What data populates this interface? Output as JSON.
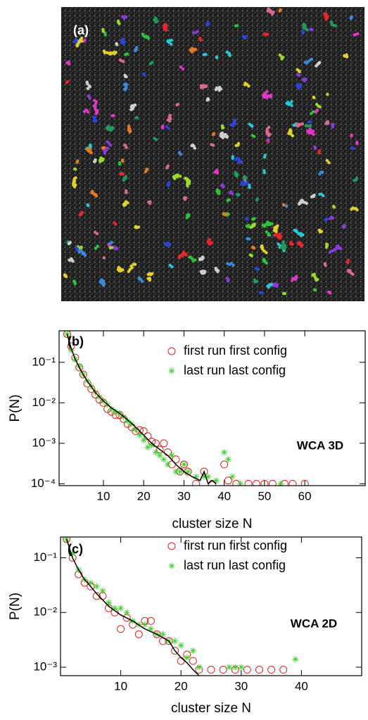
{
  "image_panel": {
    "label": "(a)"
  },
  "chart_data": [
    {
      "type": "scatter",
      "panel_label": "(b)",
      "annotation": "WCA 3D",
      "x_label": "cluster size N",
      "y_label": "P(N)",
      "log_y": true,
      "xlim": [
        -1,
        75
      ],
      "ylim": [
        9e-05,
        0.6
      ],
      "xticks": [
        10,
        20,
        30,
        40,
        50,
        60
      ],
      "yticks": [
        {
          "value": 0.1,
          "label": "10⁻¹"
        },
        {
          "value": 0.01,
          "label": "10⁻²"
        },
        {
          "value": 0.001,
          "label": "10⁻³"
        },
        {
          "value": 0.0001,
          "label": "10⁻⁴"
        }
      ],
      "series": [
        {
          "name": "first run first config",
          "color": "#e0241b",
          "marker": "circle",
          "x": [
            1,
            2,
            3,
            4,
            5,
            6,
            7,
            8,
            9,
            10,
            11,
            12,
            13,
            14,
            15,
            16,
            17,
            18,
            19,
            20,
            21,
            22,
            23,
            24,
            25,
            26,
            27,
            28,
            29,
            30,
            31,
            33,
            35,
            37,
            40,
            41,
            43,
            46,
            48,
            50,
            52,
            55,
            57,
            60
          ],
          "values": [
            0.5,
            0.25,
            0.13,
            0.075,
            0.05,
            0.03,
            0.022,
            0.016,
            0.012,
            0.01,
            0.007,
            0.006,
            0.005,
            0.005,
            0.004,
            0.003,
            0.0025,
            0.002,
            0.0021,
            0.002,
            0.0015,
            0.0011,
            0.001,
            0.0007,
            0.001,
            0.0006,
            0.0003,
            0.0004,
            0.0002,
            0.0003,
            0.0002,
            0.0001,
            0.0002,
            0.0001,
            0.0003,
            0.00012,
            0.0001,
            0.0001,
            0.0001,
            0.0001,
            0.0001,
            0.0001,
            0.0001,
            0.0001
          ]
        },
        {
          "name": "last run last config",
          "color": "#3fd22e",
          "marker": "star",
          "x": [
            1,
            2,
            3,
            4,
            5,
            6,
            7,
            8,
            9,
            10,
            11,
            12,
            13,
            14,
            15,
            16,
            17,
            18,
            19,
            20,
            21,
            22,
            23,
            24,
            25,
            26,
            27,
            28,
            29,
            30,
            31,
            33,
            35,
            36,
            38,
            40,
            41,
            42,
            44,
            54
          ],
          "values": [
            0.5,
            0.2,
            0.12,
            0.08,
            0.05,
            0.035,
            0.025,
            0.018,
            0.014,
            0.011,
            0.009,
            0.007,
            0.006,
            0.0055,
            0.0045,
            0.0035,
            0.003,
            0.0022,
            0.0016,
            0.0012,
            0.0008,
            0.0009,
            0.0006,
            0.0005,
            0.0004,
            0.0003,
            0.0005,
            0.0002,
            0.0002,
            0.0003,
            0.0002,
            0.00015,
            0.00015,
            0.00015,
            0.00012,
            0.0006,
            0.0004,
            0.00015,
            0.0001,
            0.0001
          ]
        },
        {
          "color": "#000000",
          "marker": "line",
          "x": [
            1,
            2,
            3,
            4,
            5,
            6,
            7,
            8,
            9,
            10,
            12,
            14,
            16,
            18,
            20,
            22,
            24,
            26,
            28,
            30,
            32,
            34,
            35,
            36,
            37,
            38
          ],
          "values": [
            0.5,
            0.22,
            0.12,
            0.075,
            0.05,
            0.034,
            0.025,
            0.018,
            0.014,
            0.011,
            0.0075,
            0.0055,
            0.0038,
            0.0025,
            0.0016,
            0.001,
            0.0007,
            0.0005,
            0.0003,
            0.0002,
            0.00015,
            0.00012,
            0.0002,
            0.0001,
            0.00012,
            0.0001
          ]
        }
      ]
    },
    {
      "type": "scatter",
      "panel_label": "(c)",
      "annotation": "WCA 2D",
      "x_label": "cluster size N",
      "y_label": "P(N)",
      "log_y": true,
      "xlim": [
        0,
        50
      ],
      "ylim": [
        0.0007,
        0.24
      ],
      "xticks": [
        10,
        20,
        30,
        40
      ],
      "yticks": [
        {
          "value": 0.1,
          "label": "10⁻¹"
        },
        {
          "value": 0.01,
          "label": "10⁻²"
        },
        {
          "value": 0.001,
          "label": "10⁻³"
        }
      ],
      "series": [
        {
          "name": "first run first config",
          "color": "#e0241b",
          "marker": "circle",
          "x": [
            1,
            2,
            3,
            4,
            5,
            6,
            7,
            8,
            9,
            10,
            11,
            12,
            13,
            14,
            15,
            16,
            17,
            18,
            19,
            20,
            21,
            22,
            23,
            25,
            27,
            29,
            31,
            33,
            35,
            37
          ],
          "values": [
            0.22,
            0.1,
            0.05,
            0.035,
            0.03,
            0.02,
            0.02,
            0.012,
            0.01,
            0.005,
            0.008,
            0.006,
            0.004,
            0.007,
            0.007,
            0.004,
            0.003,
            0.003,
            0.002,
            0.0013,
            0.0017,
            0.0013,
            0.0009,
            0.0009,
            0.0009,
            0.0009,
            0.0009,
            0.0009,
            0.0009,
            0.0009
          ]
        },
        {
          "name": "last run last config",
          "color": "#3fd22e",
          "marker": "star",
          "x": [
            1,
            2,
            3,
            4,
            5,
            6,
            7,
            8,
            9,
            10,
            11,
            12,
            13,
            14,
            15,
            16,
            17,
            18,
            19,
            20,
            21,
            22,
            23,
            28,
            29,
            30,
            39
          ],
          "values": [
            0.22,
            0.12,
            0.06,
            0.04,
            0.035,
            0.03,
            0.025,
            0.015,
            0.012,
            0.012,
            0.01,
            0.007,
            0.006,
            0.006,
            0.005,
            0.004,
            0.004,
            0.003,
            0.003,
            0.0025,
            0.0015,
            0.002,
            0.001,
            0.001,
            0.001,
            0.001,
            0.0014
          ]
        },
        {
          "color": "#000000",
          "marker": "line",
          "x": [
            1,
            2,
            3,
            4,
            5,
            6,
            7,
            8,
            10,
            12,
            14,
            16,
            18,
            19,
            20,
            21,
            22,
            23
          ],
          "values": [
            0.22,
            0.1,
            0.06,
            0.04,
            0.03,
            0.022,
            0.017,
            0.013,
            0.009,
            0.007,
            0.005,
            0.004,
            0.003,
            0.002,
            0.0015,
            0.0012,
            0.0009,
            0.0007
          ]
        }
      ]
    }
  ]
}
